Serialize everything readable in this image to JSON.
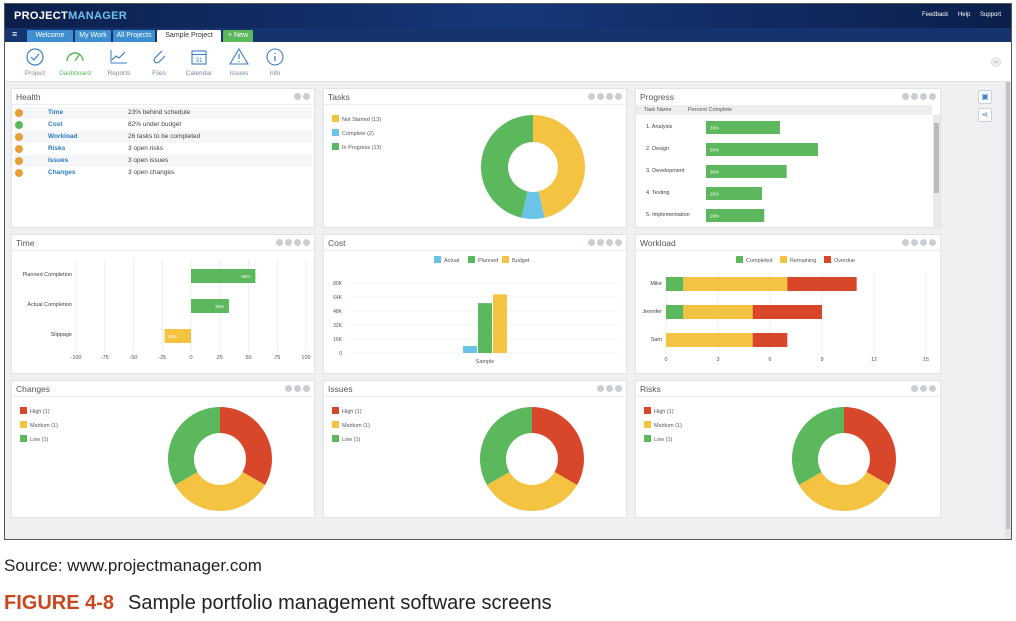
{
  "app": {
    "logo_a": "PROJECT",
    "logo_b": "MANAGER",
    "links": [
      "Feedback",
      "Help",
      "Support"
    ],
    "tabs": [
      {
        "label": "Welcome"
      },
      {
        "label": "My Work"
      },
      {
        "label": "All Projects"
      },
      {
        "label": "Sample Project"
      },
      {
        "label": "+ New"
      }
    ],
    "menu_icon": "hamburger-icon"
  },
  "toolbar": [
    {
      "label": "Project",
      "icon": "check-circle-icon"
    },
    {
      "label": "Dashboard",
      "icon": "speedometer-icon"
    },
    {
      "label": "Reports",
      "icon": "line-chart-icon"
    },
    {
      "label": "Files",
      "icon": "paperclip-icon"
    },
    {
      "label": "Calendar",
      "icon": "calendar-icon"
    },
    {
      "label": "Issues",
      "icon": "warning-icon"
    },
    {
      "label": "Info",
      "icon": "info-icon"
    }
  ],
  "calendar_day": "31",
  "panels": {
    "health": "Health",
    "tasks": "Tasks",
    "progress": "Progress",
    "time": "Time",
    "cost": "Cost",
    "workload": "Workload",
    "changes": "Changes",
    "issues": "Issues",
    "risks": "Risks"
  },
  "health": [
    {
      "name": "Time",
      "value": "23% behind schedule",
      "status": "orange"
    },
    {
      "name": "Cost",
      "value": "82% under budget",
      "status": "green"
    },
    {
      "name": "Workload",
      "value": "26 tasks to be completed",
      "status": "orange"
    },
    {
      "name": "Risks",
      "value": "3 open risks",
      "status": "orange"
    },
    {
      "name": "Issues",
      "value": "3 open issues",
      "status": "orange"
    },
    {
      "name": "Changes",
      "value": "3 open changes",
      "status": "orange"
    }
  ],
  "colors": {
    "green": "#5cb85c",
    "yellow": "#f5c342",
    "blue": "#6cc3e8",
    "red": "#d9472b",
    "orange": "#e8a03a",
    "link": "#2a7bbf"
  },
  "chart_data": [
    {
      "id": "tasks",
      "type": "pie",
      "legend": [
        "Not Started (13)",
        "Complete (2)",
        "In Progress (13)"
      ],
      "series": [
        {
          "name": "Not Started",
          "value": 13,
          "color": "#f5c342"
        },
        {
          "name": "Complete",
          "value": 2,
          "color": "#6cc3e8"
        },
        {
          "name": "In Progress",
          "value": 13,
          "color": "#5cb85c"
        }
      ]
    },
    {
      "id": "progress",
      "type": "bar",
      "columns": [
        "Task Name",
        "Percent Complete"
      ],
      "categories": [
        "1. Analysis",
        "2. Design",
        "3. Development",
        "4. Testing",
        "5. Implementation"
      ],
      "values": [
        33,
        50,
        36,
        25,
        26
      ],
      "labels": [
        "33%",
        "50%",
        "36%",
        "25%",
        "26%"
      ]
    },
    {
      "id": "time",
      "type": "bar",
      "categories": [
        "Planned Completion",
        "Actual Completion",
        "Slippage"
      ],
      "values": [
        56,
        33,
        -23
      ],
      "labels": [
        "56%",
        "33%",
        "23%"
      ],
      "xticks": [
        "-100",
        "-75",
        "-50",
        "-25",
        "0",
        "25",
        "50",
        "75",
        "100"
      ],
      "xlim": [
        -100,
        100
      ]
    },
    {
      "id": "cost",
      "type": "bar",
      "categories": [
        "Sample"
      ],
      "series": [
        {
          "name": "Actual",
          "values": [
            8
          ],
          "color": "#6cc3e8"
        },
        {
          "name": "Planned",
          "values": [
            57
          ],
          "color": "#5cb85c"
        },
        {
          "name": "Budget",
          "values": [
            67
          ],
          "color": "#f5c342"
        }
      ],
      "yticks": [
        "0",
        "16K",
        "32K",
        "48K",
        "64K",
        "80K"
      ],
      "ylim": [
        0,
        80
      ]
    },
    {
      "id": "workload",
      "type": "bar",
      "categories": [
        "Mike",
        "Jennifer",
        "Sam"
      ],
      "series": [
        {
          "name": "Completed",
          "values": [
            1,
            1,
            0
          ],
          "color": "#5cb85c"
        },
        {
          "name": "Remaining",
          "values": [
            6,
            4,
            5
          ],
          "color": "#f5c342"
        },
        {
          "name": "Overdue",
          "values": [
            4,
            4,
            2
          ],
          "color": "#d9472b"
        }
      ],
      "xticks": [
        "0",
        "3",
        "6",
        "9",
        "12",
        "15"
      ],
      "xlim": [
        0,
        15
      ]
    },
    {
      "id": "changes",
      "type": "pie",
      "legend": [
        "High (1)",
        "Medium (1)",
        "Low (1)"
      ],
      "series": [
        {
          "name": "High",
          "value": 1,
          "color": "#d9472b"
        },
        {
          "name": "Medium",
          "value": 1,
          "color": "#f5c342"
        },
        {
          "name": "Low",
          "value": 1,
          "color": "#5cb85c"
        }
      ]
    },
    {
      "id": "issues",
      "type": "pie",
      "legend": [
        "High (1)",
        "Medium (1)",
        "Low (1)"
      ],
      "series": [
        {
          "name": "High",
          "value": 1,
          "color": "#d9472b"
        },
        {
          "name": "Medium",
          "value": 1,
          "color": "#f5c342"
        },
        {
          "name": "Low",
          "value": 1,
          "color": "#5cb85c"
        }
      ]
    },
    {
      "id": "risks",
      "type": "pie",
      "legend": [
        "High (1)",
        "Medium (1)",
        "Low (1)"
      ],
      "series": [
        {
          "name": "High",
          "value": 1,
          "color": "#d9472b"
        },
        {
          "name": "Medium",
          "value": 1,
          "color": "#f5c342"
        },
        {
          "name": "Low",
          "value": 1,
          "color": "#5cb85c"
        }
      ]
    }
  ],
  "caption": {
    "source": "Source: www.projectmanager.com",
    "figure_no": "FIGURE 4-8",
    "figure_title": "Sample portfolio management software screens"
  }
}
